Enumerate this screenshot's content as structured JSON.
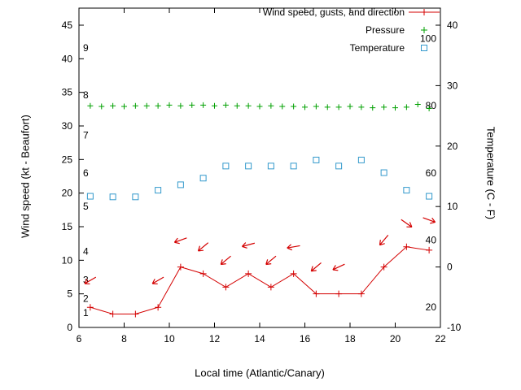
{
  "figure": {
    "xlabel": "Local time (Atlantic/Canary)",
    "ylabel_left": "Wind speed (kt - Beaufort)",
    "ylabel_right": "Temperature (C - F)"
  },
  "legend": {
    "position": "top-right-inside",
    "entries": [
      {
        "label": "Wind speed, gusts, and direction",
        "series": "wind",
        "marker": "line-plus",
        "color": "#d40000"
      },
      {
        "label": "Pressure",
        "series": "pressure",
        "marker": "plus",
        "color": "#00a000"
      },
      {
        "label": "Temperature",
        "series": "temperature",
        "marker": "open-square",
        "color": "#3399cc"
      }
    ]
  },
  "chart_data": {
    "type": "line",
    "title": "",
    "grid": false,
    "x_axis": {
      "label": "Local time (Atlantic/Canary)",
      "range": [
        6,
        22
      ],
      "ticks": [
        6,
        8,
        10,
        12,
        14,
        16,
        18,
        20,
        22
      ]
    },
    "y_axis_left": {
      "label": "Wind speed (kt - Beaufort)",
      "units": "knots",
      "range": [
        0,
        47.5
      ],
      "ticks": [
        0,
        5,
        10,
        15,
        20,
        25,
        30,
        35,
        40,
        45
      ],
      "beaufort_scale_labels": [
        {
          "b": 1,
          "kt": 2.2
        },
        {
          "b": 2,
          "kt": 4.3
        },
        {
          "b": 3,
          "kt": 7.1
        },
        {
          "b": 4,
          "kt": 11.3
        },
        {
          "b": 5,
          "kt": 18.0
        },
        {
          "b": 6,
          "kt": 23.0
        },
        {
          "b": 7,
          "kt": 28.6
        },
        {
          "b": 8,
          "kt": 34.6
        },
        {
          "b": 9,
          "kt": 41.6
        }
      ]
    },
    "y_axis_right": {
      "label": "Temperature (C - F)",
      "units": "celsius",
      "range": [
        -10,
        42.8
      ],
      "ticks": [
        -10,
        0,
        10,
        20,
        30,
        40
      ],
      "fahrenheit_inner_labels": [
        20,
        40,
        60,
        80,
        100
      ]
    },
    "series": {
      "wind_speed": {
        "name": "Wind speed",
        "color": "#d40000",
        "x": [
          6.5,
          7.5,
          8.5,
          9.5,
          10.5,
          11.5,
          12.5,
          13.5,
          14.5,
          15.5,
          16.5,
          17.5,
          18.5,
          19.5,
          20.5,
          21.5
        ],
        "kt": [
          3,
          2,
          2,
          3,
          9,
          8,
          6,
          8,
          6,
          8,
          5,
          5,
          5,
          9,
          12,
          11.5
        ]
      },
      "wind_gusts_direction": {
        "name": "Gusts and direction (arrows)",
        "color": "#d40000",
        "points": [
          {
            "x": 6.5,
            "kt": 7,
            "angle_deg": 150
          },
          {
            "x": 9.5,
            "kt": 7,
            "angle_deg": 150
          },
          {
            "x": 10.5,
            "kt": 13,
            "angle_deg": 160
          },
          {
            "x": 11.5,
            "kt": 12,
            "angle_deg": 140
          },
          {
            "x": 12.5,
            "kt": 10,
            "angle_deg": 140
          },
          {
            "x": 13.5,
            "kt": 12.3,
            "angle_deg": 165
          },
          {
            "x": 14.5,
            "kt": 10,
            "angle_deg": 140
          },
          {
            "x": 15.5,
            "kt": 12,
            "angle_deg": 170
          },
          {
            "x": 16.5,
            "kt": 9,
            "angle_deg": 140
          },
          {
            "x": 17.5,
            "kt": 9,
            "angle_deg": 155
          },
          {
            "x": 19.5,
            "kt": 13,
            "angle_deg": 130
          },
          {
            "x": 20.5,
            "kt": 15.5,
            "angle_deg": 35
          },
          {
            "x": 21.5,
            "kt": 16,
            "angle_deg": 20
          }
        ]
      },
      "pressure": {
        "name": "Pressure",
        "color": "#00a000",
        "note": "plotted in left-axis units; no pressure scale shown",
        "x": [
          6.5,
          7,
          7.5,
          8,
          8.5,
          9,
          9.5,
          10,
          10.5,
          11,
          11.5,
          12,
          12.5,
          13,
          13.5,
          14,
          14.5,
          15,
          15.5,
          16,
          16.5,
          17,
          17.5,
          18,
          18.5,
          19,
          19.5,
          20,
          20.5,
          21,
          21.5
        ],
        "value_left_axis_units": [
          33.0,
          32.9,
          33.0,
          32.9,
          33.0,
          33.0,
          33.0,
          33.1,
          33.0,
          33.1,
          33.1,
          33.0,
          33.1,
          33.0,
          33.0,
          32.9,
          33.0,
          32.9,
          32.9,
          32.8,
          32.9,
          32.8,
          32.8,
          32.9,
          32.8,
          32.7,
          32.8,
          32.7,
          32.8,
          33.2,
          32.6
        ]
      },
      "temperature": {
        "name": "Temperature",
        "color": "#3399cc",
        "x": [
          6.5,
          7.5,
          8.5,
          9.5,
          10.5,
          11.5,
          12.5,
          13.5,
          14.5,
          15.5,
          16.5,
          17.5,
          18.5,
          19.5,
          20.5,
          21.5
        ],
        "celsius": [
          11.7,
          11.6,
          11.6,
          12.7,
          13.6,
          14.7,
          16.7,
          16.7,
          16.7,
          16.7,
          17.7,
          16.7,
          17.7,
          15.6,
          12.7,
          11.7
        ]
      }
    }
  }
}
